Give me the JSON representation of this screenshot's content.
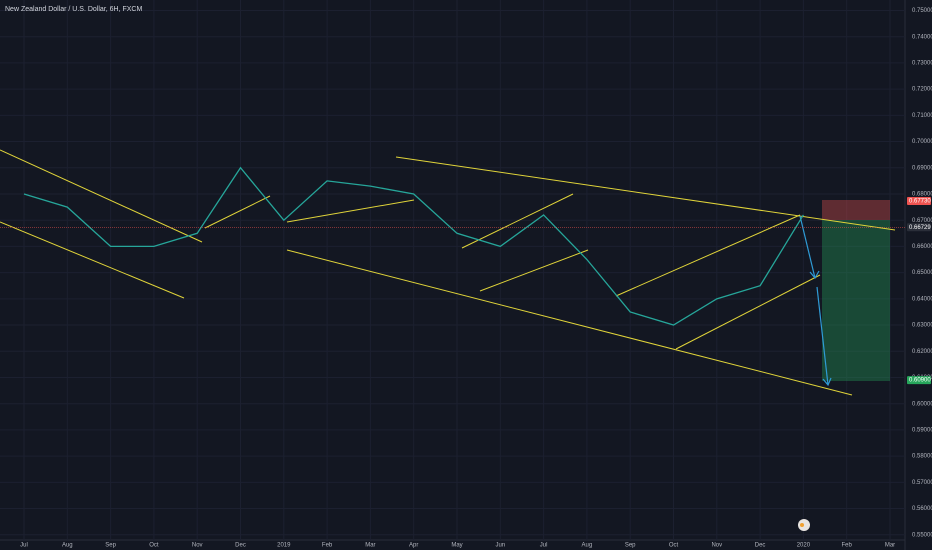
{
  "chart_data": {
    "type": "line",
    "title": "New Zealand Dollar / U.S. Dollar, 6H, FXCM",
    "categories": [
      "Jul",
      "Aug",
      "Sep",
      "Oct",
      "Nov",
      "Dec",
      "2019",
      "Feb",
      "Mar",
      "Apr",
      "May",
      "Jun",
      "Jul",
      "Aug",
      "Sep",
      "Oct",
      "Nov",
      "Dec",
      "2020",
      "Feb",
      "Mar"
    ],
    "series": [
      {
        "name": "NZDUSD",
        "color": "#26a69a",
        "values": [
          0.68,
          0.675,
          0.66,
          0.66,
          0.665,
          0.69,
          0.67,
          0.685,
          0.683,
          0.68,
          0.665,
          0.66,
          0.672,
          0.655,
          0.635,
          0.63,
          0.64,
          0.645,
          0.672,
          null,
          null
        ]
      }
    ],
    "ylim": [
      0.548,
      0.754
    ],
    "yticks": [
      {
        "value": 0.55,
        "label": "0.55000"
      },
      {
        "value": 0.56,
        "label": "0.56000"
      },
      {
        "value": 0.57,
        "label": "0.57000"
      },
      {
        "value": 0.58,
        "label": "0.58000"
      },
      {
        "value": 0.59,
        "label": "0.59000"
      },
      {
        "value": 0.6,
        "label": "0.60000"
      },
      {
        "value": 0.61,
        "label": "0.61000"
      },
      {
        "value": 0.62,
        "label": "0.62000"
      },
      {
        "value": 0.63,
        "label": "0.63000"
      },
      {
        "value": 0.64,
        "label": "0.64000"
      },
      {
        "value": 0.65,
        "label": "0.65000"
      },
      {
        "value": 0.66,
        "label": "0.66000"
      },
      {
        "value": 0.67,
        "label": "0.67000"
      },
      {
        "value": 0.68,
        "label": "0.68000"
      },
      {
        "value": 0.69,
        "label": "0.69000"
      },
      {
        "value": 0.7,
        "label": "0.70000"
      },
      {
        "value": 0.71,
        "label": "0.71000"
      },
      {
        "value": 0.72,
        "label": "0.72000"
      },
      {
        "value": 0.73,
        "label": "0.73000"
      },
      {
        "value": 0.74,
        "label": "0.74000"
      },
      {
        "value": 0.75,
        "label": "0.75000"
      }
    ],
    "grid": true,
    "price_labels": [
      {
        "value": 0.6773,
        "label": "0.67730",
        "color": "#ef5350"
      },
      {
        "value": 0.66729,
        "label": "0.66729",
        "color": "#2a2e39"
      },
      {
        "value": 0.609,
        "label": "0.60900",
        "color": "#26a65b"
      }
    ]
  }
}
